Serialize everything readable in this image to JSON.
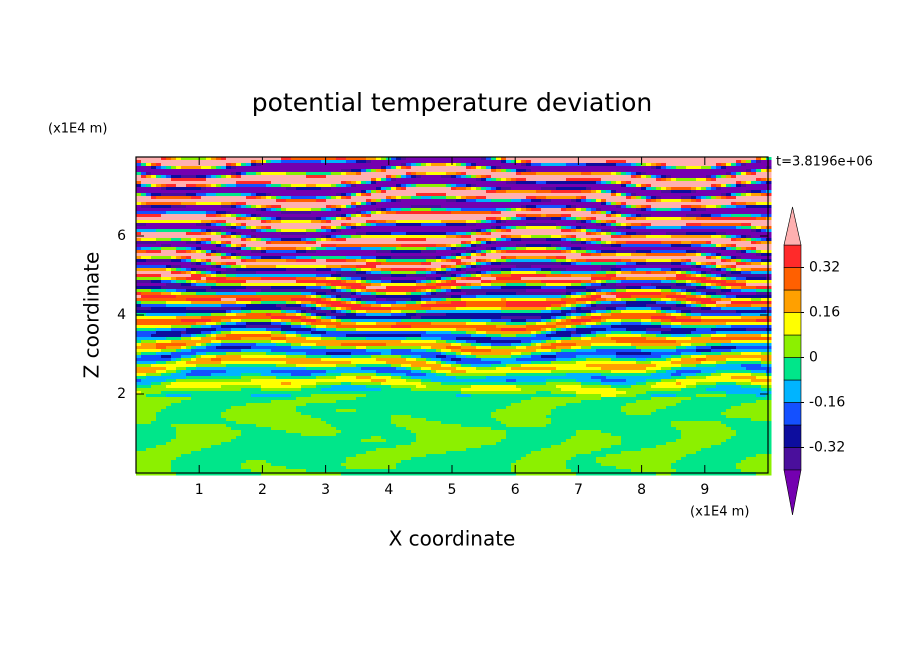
{
  "chart_data": {
    "type": "contour",
    "title": "potential temperature deviation",
    "xlabel": "X coordinate",
    "ylabel": "Z coordinate",
    "xunit": "(x1E4 m)",
    "yunit": "(x1E4 m)",
    "time_label": "t=3.8196e+06",
    "xlim": [
      0,
      10
    ],
    "xticks": [
      1,
      2,
      3,
      4,
      5,
      6,
      7,
      8,
      9
    ],
    "ylim": [
      0,
      8
    ],
    "yticks": [
      2,
      4,
      6
    ],
    "colorbar": {
      "levels": [
        -0.4,
        -0.32,
        -0.24,
        -0.16,
        -0.08,
        0,
        0.08,
        0.16,
        0.24,
        0.32,
        0.4
      ],
      "colors": [
        "#4a0f9c",
        "#0d0d9e",
        "#1450ff",
        "#00b4ff",
        "#00e68a",
        "#8cf000",
        "#ffff00",
        "#ffa000",
        "#ff6000",
        "#ff2a2a"
      ],
      "under_color": "#7400b0",
      "over_color": "#ffb0b0",
      "ticks": [
        -0.32,
        -0.16,
        0,
        0.16,
        0.32
      ]
    }
  }
}
